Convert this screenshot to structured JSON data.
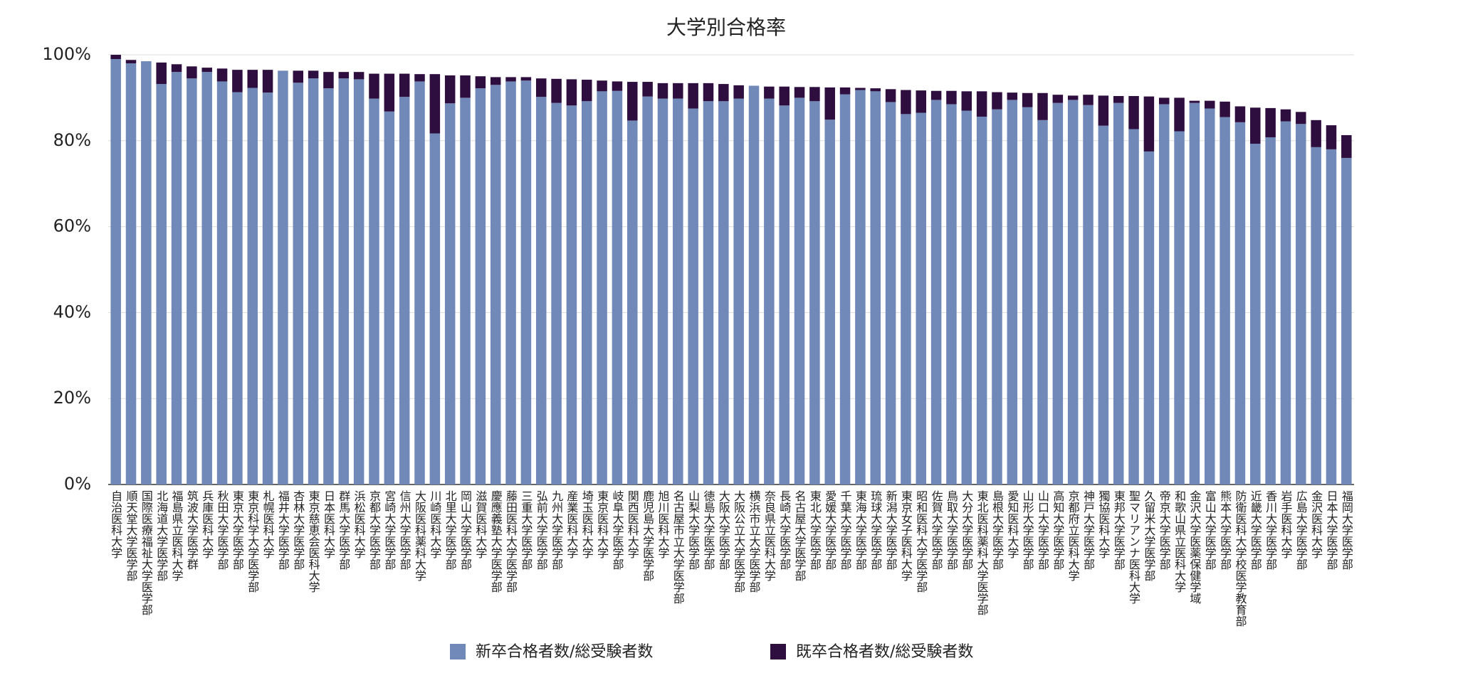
{
  "chart_data": {
    "type": "stacked_bar",
    "title": "大学別合格率",
    "categories": [
      "自治医科大学",
      "順天堂大学医学部",
      "国際医療福祉大学医学部",
      "北海道大学医学部",
      "福島県立医科大学",
      "筑波大学医学群",
      "兵庫医科大学",
      "秋田大学医学部",
      "東京大学医学部",
      "東京科学大学医学部",
      "札幌医科大学",
      "福井大学医学部",
      "杏林大学医学部",
      "東京慈恵会医科大学",
      "日本医科大学",
      "群馬大学医学部",
      "浜松医科大学",
      "京都大学医学部",
      "宮崎大学医学部",
      "信州大学医学部",
      "大阪医科薬科大学",
      "川崎医科大学",
      "北里大学医学部",
      "岡山大学医学部",
      "滋賀医科大学",
      "慶應義塾大学医学部",
      "藤田医科大学医学部",
      "三重大学医学部",
      "弘前大学医学部",
      "九州大学医学部",
      "産業医科大学",
      "埼玉医科大学",
      "東京医科大学",
      "岐阜大学医学部",
      "関西医科大学",
      "鹿児島大学医学部",
      "旭川医科大学",
      "名古屋市立大学医学部",
      "山梨大学医学部",
      "徳島大学医学部",
      "大阪大学医学部",
      "大阪公立大学医学部",
      "横浜市立大学医学部",
      "奈良県立医科大学",
      "長崎大学医学部",
      "名古屋大学医学部",
      "東北大学医学部",
      "愛媛大学医学部",
      "千葉大学医学部",
      "東海大学医学部",
      "琉球大学医学部",
      "新潟大学医学部",
      "東京女子医科大学",
      "昭和医科大学医学部",
      "佐賀大学医学部",
      "鳥取大学医学部",
      "大分大学医学部",
      "東北医科薬科大学医学部",
      "島根大学医学部",
      "愛知医科大学",
      "山形大学医学部",
      "山口大学医学部",
      "高知大学医学部",
      "京都府立医科大学",
      "神戸大学医学部",
      "獨協医科大学",
      "東邦大学医学部",
      "聖マリアンナ医科大学",
      "久留米大学医学部",
      "帝京大学医学部",
      "和歌山県立医科大学",
      "金沢大学医薬保健学域",
      "富山大学医学部",
      "熊本大学医学部",
      "防衛医科大学校医学教育部",
      "近畿大学医学部",
      "香川大学医学部",
      "岩手医科大学",
      "広島大学医学部",
      "金沢医科大学",
      "日本大学医学部",
      "福岡大学医学部"
    ],
    "series": [
      {
        "name": "新卒合格者数/総受験者数",
        "color": "#7089b8",
        "values": [
          99,
          98,
          98.5,
          93.2,
          96,
          94.5,
          96,
          93.8,
          91.3,
          92.3,
          91.2,
          96.3,
          93.5,
          94.5,
          92.2,
          94.5,
          94.3,
          89.8,
          86.8,
          90.2,
          93.8,
          81.7,
          88.7,
          90,
          92.2,
          93,
          93.8,
          94,
          90.2,
          88.8,
          88.2,
          89.2,
          91.5,
          91.6,
          84.7,
          90.3,
          89.8,
          89.8,
          87.5,
          89.2,
          89.2,
          89.8,
          92.8,
          89.8,
          88.2,
          90,
          89.2,
          84.9,
          90.8,
          91.8,
          91.5,
          89,
          86.2,
          86.5,
          89.5,
          88.5,
          87,
          85.6,
          87.3,
          89.5,
          87.8,
          84.8,
          88.8,
          89.5,
          88.3,
          83.5,
          88.8,
          82.7,
          77.5,
          88.5,
          82.2,
          88.8,
          87.5,
          85.5,
          84.3,
          79.3,
          80.8,
          84.5,
          83.9,
          78.5,
          78,
          76
        ]
      },
      {
        "name": "既卒合格者数/総受験者数",
        "color": "#2e0e3e",
        "values": [
          1,
          0.8,
          0,
          5,
          1.8,
          2.8,
          1,
          3,
          5.2,
          4.2,
          5.3,
          0,
          2.8,
          1.8,
          3.8,
          1.5,
          1.7,
          5.8,
          8.8,
          5.4,
          1.7,
          13.8,
          6.5,
          5.2,
          2.8,
          1.8,
          1,
          0.8,
          4.3,
          5.6,
          6.1,
          5,
          2.5,
          2.2,
          9,
          3.4,
          3.6,
          3.6,
          5.9,
          4.2,
          4,
          3.1,
          0,
          2.8,
          4.4,
          2.5,
          3.3,
          7.5,
          1.6,
          0.5,
          0.7,
          3,
          5.6,
          5.2,
          2.1,
          3.1,
          4.5,
          5.9,
          4,
          1.7,
          3.3,
          6.3,
          1.9,
          1,
          2.4,
          7,
          1.6,
          7.7,
          12.8,
          1.5,
          7.8,
          0.5,
          1.8,
          3.6,
          3.7,
          8.4,
          6.8,
          2.8,
          2.8,
          6.3,
          5.6,
          5.3
        ]
      }
    ],
    "ylim": [
      0,
      100
    ],
    "yticks": [
      {
        "value": 0,
        "label": "0%"
      },
      {
        "value": 20,
        "label": "20%"
      },
      {
        "value": 40,
        "label": "40%"
      },
      {
        "value": 60,
        "label": "60%"
      },
      {
        "value": 80,
        "label": "80%"
      },
      {
        "value": 100,
        "label": "100%"
      }
    ],
    "grid": true,
    "legend": "bottom"
  }
}
